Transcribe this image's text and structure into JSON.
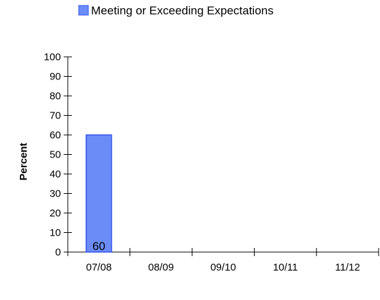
{
  "chart_data": {
    "type": "bar",
    "title": "",
    "xlabel": "",
    "ylabel": "Percent",
    "ylim": [
      0,
      100
    ],
    "yticks": [
      0,
      10,
      20,
      30,
      40,
      50,
      60,
      70,
      80,
      90,
      100
    ],
    "categories": [
      "07/08",
      "08/09",
      "09/10",
      "10/11",
      "11/12"
    ],
    "series": [
      {
        "name": "Meeting or Exceeding Expectations",
        "values": [
          60,
          null,
          null,
          null,
          null
        ],
        "data_labels": [
          "60",
          null,
          null,
          null,
          null
        ],
        "color": "#6b8cf7",
        "stroke": "#3355ee"
      }
    ],
    "grid": false,
    "legend_position": "top-center"
  }
}
